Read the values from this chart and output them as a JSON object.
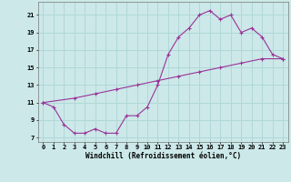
{
  "line1_x": [
    0,
    1,
    2,
    3,
    4,
    5,
    6,
    7,
    8,
    9,
    10,
    11,
    12,
    13,
    14,
    15,
    16,
    17,
    18,
    19,
    20,
    21,
    22,
    23
  ],
  "line1_y": [
    11.0,
    10.5,
    8.5,
    7.5,
    7.5,
    8.0,
    7.5,
    7.5,
    9.5,
    9.5,
    10.5,
    13.0,
    16.5,
    18.5,
    19.5,
    21.0,
    21.5,
    20.5,
    21.0,
    19.0,
    19.5,
    18.5,
    16.5,
    16.0
  ],
  "line2_x": [
    0,
    3,
    5,
    7,
    9,
    11,
    13,
    15,
    17,
    19,
    21,
    23
  ],
  "line2_y": [
    11.0,
    11.5,
    12.0,
    12.5,
    13.0,
    13.5,
    14.0,
    14.5,
    15.0,
    15.5,
    16.0,
    16.0
  ],
  "color": "#993399",
  "bg_color": "#cce8e8",
  "grid_color": "#b0d8d8",
  "xlabel": "Windchill (Refroidissement éolien,°C)",
  "xlim": [
    -0.5,
    23.5
  ],
  "ylim": [
    6.5,
    22.5
  ],
  "xticks": [
    0,
    1,
    2,
    3,
    4,
    5,
    6,
    7,
    8,
    9,
    10,
    11,
    12,
    13,
    14,
    15,
    16,
    17,
    18,
    19,
    20,
    21,
    22,
    23
  ],
  "yticks": [
    7,
    9,
    11,
    13,
    15,
    17,
    19,
    21
  ],
  "marker": "+",
  "markersize": 3,
  "linewidth": 0.8,
  "xlabel_fontsize": 5.5,
  "tick_fontsize": 5.0
}
